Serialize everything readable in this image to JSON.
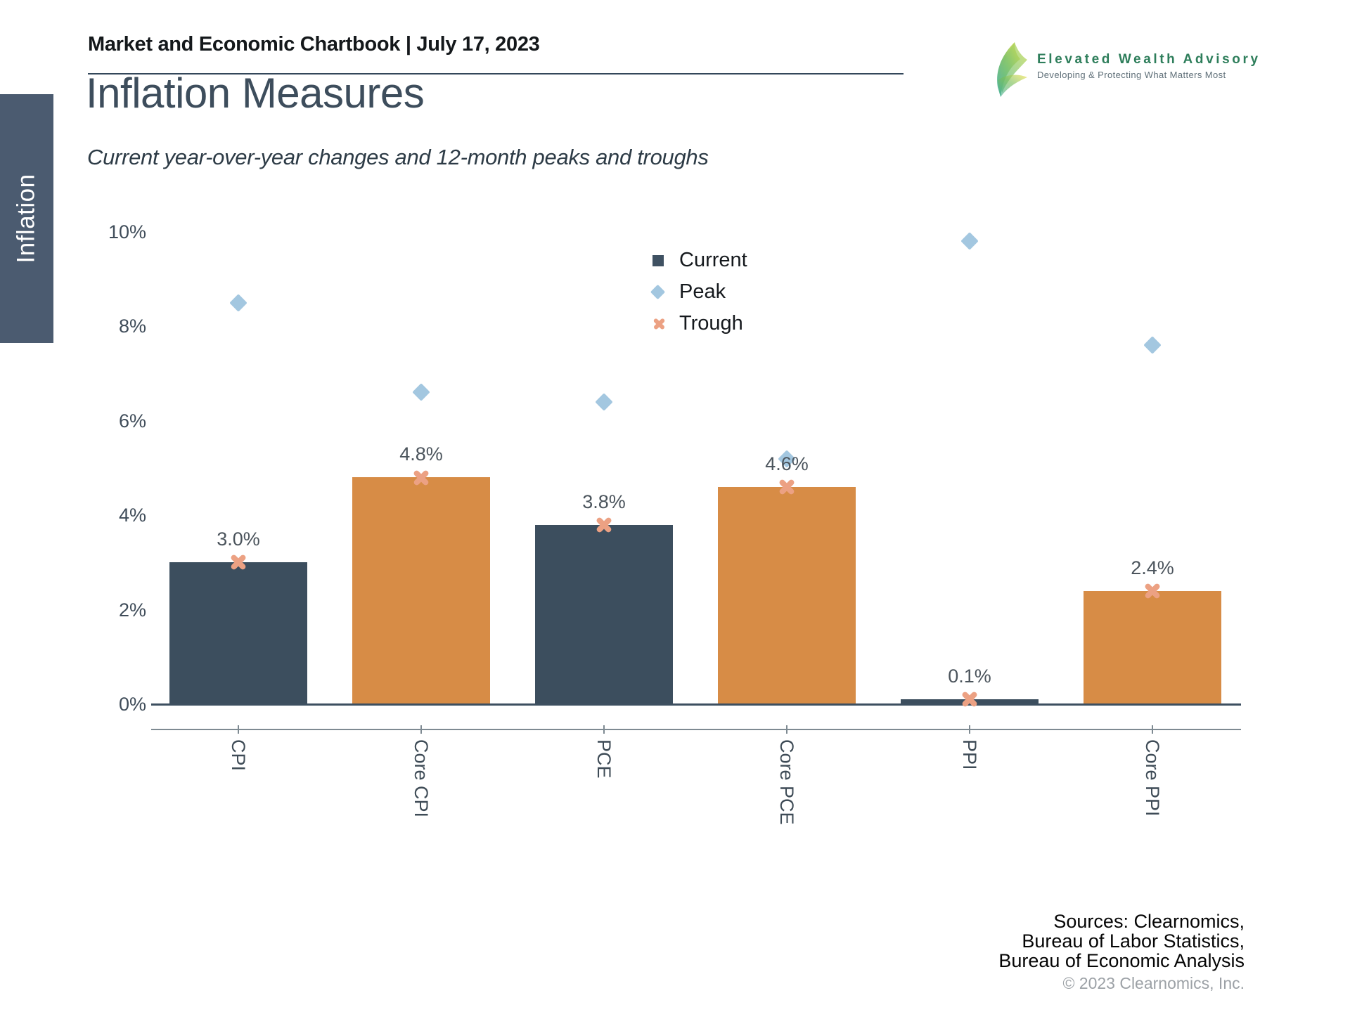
{
  "header": {
    "title": "Market and Economic Chartbook | July 17, 2023"
  },
  "logo": {
    "name": "Elevated Wealth Advisory",
    "tagline": "Developing & Protecting What Matters Most",
    "accent_color": "#2E7E5B"
  },
  "sidebar": {
    "tab_label": "Inflation",
    "tab_color": "#4B5B70"
  },
  "page": {
    "title": "Inflation Measures",
    "subtitle": "Current year-over-year changes and 12-month peaks and troughs"
  },
  "chart_data": {
    "type": "bar",
    "title": "Inflation Measures",
    "subtitle": "Current year-over-year changes and 12-month peaks and troughs",
    "categories": [
      "CPI",
      "Core CPI",
      "PCE",
      "Core PCE",
      "PPI",
      "Core PPI"
    ],
    "series": [
      {
        "name": "Current",
        "type": "bar",
        "values": [
          3.0,
          4.8,
          3.8,
          4.6,
          0.1,
          2.4
        ],
        "labels": [
          "3.0%",
          "4.8%",
          "3.8%",
          "4.6%",
          "0.1%",
          "2.4%"
        ],
        "bar_colors": [
          "#3C4E5E",
          "#D78C46",
          "#3C4E5E",
          "#D78C46",
          "#3C4E5E",
          "#D78C46"
        ],
        "legend_marker_color": "#3F5162"
      },
      {
        "name": "Peak",
        "type": "scatter",
        "marker": "diamond",
        "color": "#A3C7E0",
        "values": [
          8.5,
          6.6,
          6.4,
          5.2,
          9.8,
          7.6
        ]
      },
      {
        "name": "Trough",
        "type": "scatter",
        "marker": "x",
        "color": "#ECA183",
        "values": [
          3.0,
          4.8,
          3.8,
          4.6,
          0.1,
          2.4
        ]
      }
    ],
    "ylim": [
      0,
      10.5
    ],
    "yticks": [
      {
        "value": 0,
        "label": "0%"
      },
      {
        "value": 2,
        "label": "2%"
      },
      {
        "value": 4,
        "label": "4%"
      },
      {
        "value": 6,
        "label": "6%"
      },
      {
        "value": 8,
        "label": "8%"
      },
      {
        "value": 10,
        "label": "10%"
      }
    ],
    "grid": false,
    "legend_position": "upper-middle"
  },
  "footer": {
    "sources_lines": [
      "Sources: Clearnomics,",
      "Bureau of Labor Statistics,",
      "Bureau of Economic Analysis"
    ],
    "copyright": "© 2023 Clearnomics, Inc."
  }
}
